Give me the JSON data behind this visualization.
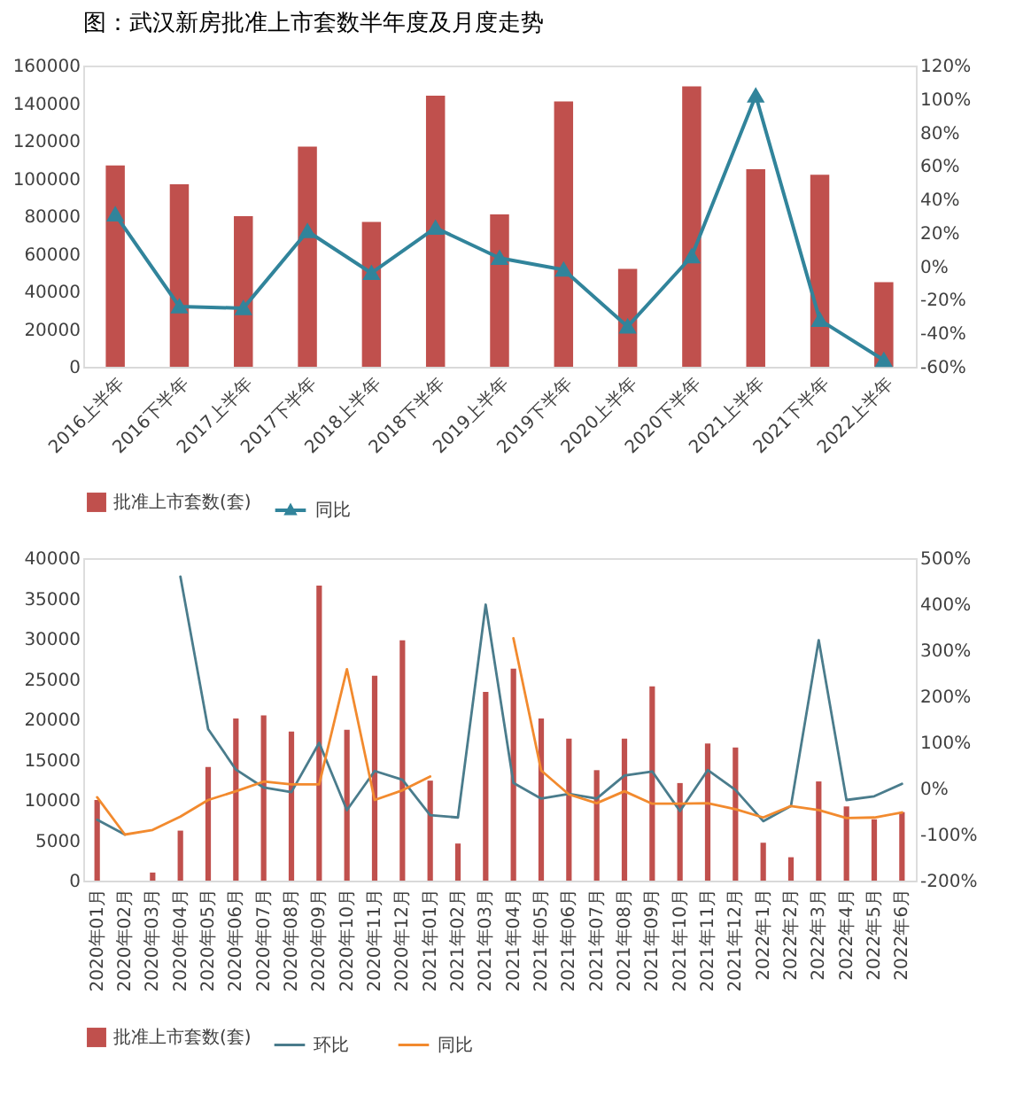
{
  "chart_data": [
    {
      "type": "bar",
      "title": "图：武汉新房批准上市套数半年度及月度走势",
      "categories": [
        "2016上半年",
        "2016下半年",
        "2017上半年",
        "2017下半年",
        "2018上半年",
        "2018下半年",
        "2019上半年",
        "2019下半年",
        "2020上半年",
        "2020下半年",
        "2021上半年",
        "2021下半年",
        "2022上半年"
      ],
      "series": [
        {
          "name": "批准上市套数(套)",
          "color": "#c0504d",
          "values": [
            107000,
            97000,
            80000,
            117000,
            77000,
            144000,
            81000,
            141000,
            52000,
            149000,
            105000,
            102000,
            45000
          ]
        },
        {
          "name": "同比",
          "type": "line",
          "axis": "y2",
          "color": "#31849b",
          "values": [
            31,
            -24,
            -25,
            21,
            -4,
            23,
            5,
            -2,
            -36,
            6,
            102,
            -32,
            -56
          ]
        }
      ],
      "ylim": [
        0,
        160000
      ],
      "yticks": [
        0,
        20000,
        40000,
        60000,
        80000,
        100000,
        120000,
        140000,
        160000
      ],
      "y2lim": [
        -60,
        120
      ],
      "y2ticks": [
        {
          "value": -60,
          "label": "-60%"
        },
        {
          "value": -40,
          "label": "-40%"
        },
        {
          "value": -20,
          "label": "-20%"
        },
        {
          "value": 0,
          "label": "0%"
        },
        {
          "value": 20,
          "label": "20%"
        },
        {
          "value": 40,
          "label": "40%"
        },
        {
          "value": 60,
          "label": "60%"
        },
        {
          "value": 80,
          "label": "80%"
        },
        {
          "value": 100,
          "label": "100%"
        },
        {
          "value": 120,
          "label": "120%"
        }
      ],
      "marker": "triangle",
      "legend": "bottom"
    },
    {
      "type": "bar",
      "categories": [
        "2020年01月",
        "2020年02月",
        "2020年03月",
        "2020年04月",
        "2020年05月",
        "2020年06月",
        "2020年07月",
        "2020年08月",
        "2020年09月",
        "2020年10月",
        "2020年11月",
        "2020年12月",
        "2021年01月",
        "2021年02月",
        "2021年03月",
        "2021年04月",
        "2021年05月",
        "2021年06月",
        "2021年07月",
        "2021年08月",
        "2021年09月",
        "2021年10月",
        "2021年11月",
        "2021年12月",
        "2022年1月",
        "2022年2月",
        "2022年3月",
        "2022年4月",
        "2022年5月",
        "2022年6月"
      ],
      "series": [
        {
          "name": "批准上市套数(套)",
          "color": "#c0504d",
          "values": [
            10000,
            0,
            1000,
            6200,
            14100,
            20100,
            20500,
            18500,
            36600,
            18700,
            25400,
            29800,
            12400,
            4600,
            23400,
            26300,
            20100,
            17600,
            13700,
            17600,
            24100,
            12100,
            17000,
            16500,
            4700,
            2900,
            12300,
            9200,
            7600,
            8500
          ]
        },
        {
          "name": "环比",
          "type": "line",
          "axis": "y2",
          "color": "#4a7c8c",
          "values": [
            -68,
            -100,
            null,
            460,
            129,
            41,
            2,
            -8,
            99,
            -47,
            38,
            19,
            -58,
            -63,
            399,
            12,
            -22,
            -12,
            -22,
            28,
            37,
            -49,
            40,
            -3,
            -71,
            -38,
            322,
            -25,
            -17,
            10
          ]
        },
        {
          "name": "同比",
          "type": "line",
          "axis": "y2",
          "color": "#f28a2e",
          "values": [
            -19,
            -100,
            -90,
            -61,
            -25,
            -6,
            15,
            9,
            9,
            259,
            -25,
            -4,
            26,
            null,
            null,
            326,
            39,
            -13,
            -32,
            -6,
            -33,
            -33,
            -32,
            -45,
            -63,
            -38,
            -47,
            -64,
            -63,
            -52
          ]
        }
      ],
      "ylim": [
        0,
        40000
      ],
      "yticks": [
        0,
        5000,
        10000,
        15000,
        20000,
        25000,
        30000,
        35000,
        40000
      ],
      "y2lim": [
        -200,
        500
      ],
      "y2ticks": [
        {
          "value": -200,
          "label": "-200%"
        },
        {
          "value": -100,
          "label": "-100%"
        },
        {
          "value": 0,
          "label": "0%"
        },
        {
          "value": 100,
          "label": "100%"
        },
        {
          "value": 200,
          "label": "200%"
        },
        {
          "value": 300,
          "label": "300%"
        },
        {
          "value": 400,
          "label": "400%"
        },
        {
          "value": 500,
          "label": "500%"
        }
      ],
      "legend": "bottom"
    }
  ]
}
